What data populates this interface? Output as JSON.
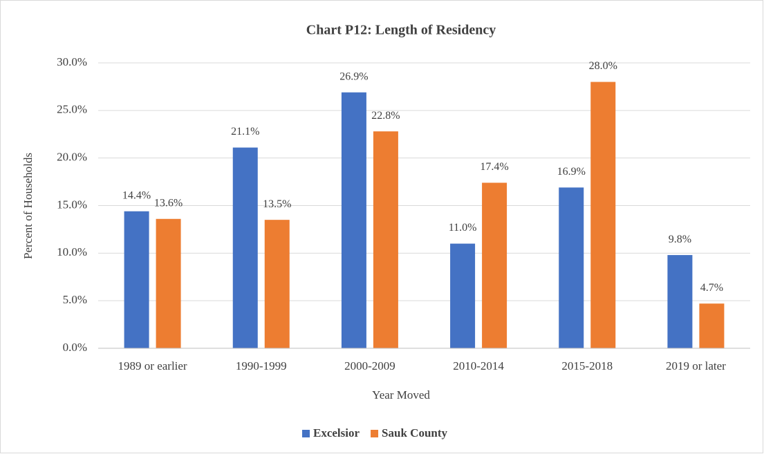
{
  "chart_data": {
    "type": "bar",
    "title": "Chart P12: Length of Residency",
    "x_label": "Year Moved",
    "y_label": "Percent of Households",
    "categories": [
      "1989 or earlier",
      "1990-1999",
      "2000-2009",
      "2010-2014",
      "2015-2018",
      "2019 or later"
    ],
    "series": [
      {
        "name": "Excelsior",
        "color": "#4472c4",
        "values": [
          14.4,
          21.1,
          26.9,
          11.0,
          16.9,
          9.8
        ],
        "value_labels": [
          "14.4%",
          "21.1%",
          "26.9%",
          "11.0%",
          "16.9%",
          "9.8%"
        ]
      },
      {
        "name": "Sauk County",
        "color": "#ed7d31",
        "values": [
          13.6,
          13.5,
          22.8,
          17.4,
          28.0,
          4.7
        ],
        "value_labels": [
          "13.6%",
          "13.5%",
          "22.8%",
          "17.4%",
          "28.0%",
          "4.7%"
        ]
      }
    ],
    "ylim": [
      0,
      30
    ],
    "yticks": [
      {
        "value": 0,
        "label": "0.0%"
      },
      {
        "value": 5,
        "label": "5.0%"
      },
      {
        "value": 10,
        "label": "10.0%"
      },
      {
        "value": 15,
        "label": "15.0%"
      },
      {
        "value": 20,
        "label": "20.0%"
      },
      {
        "value": 25,
        "label": "25.0%"
      },
      {
        "value": 30,
        "label": "30.0%"
      }
    ],
    "grid": true,
    "legend": "bottom"
  }
}
